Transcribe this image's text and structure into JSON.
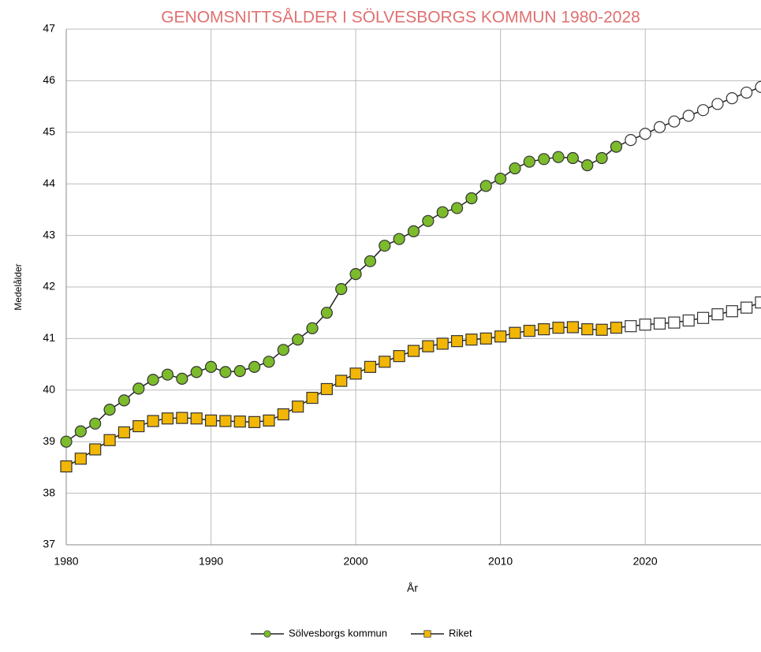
{
  "chart_data": {
    "type": "line",
    "title": "GENOMSNITTSÅLDER I SÖLVESBORGS KOMMUN 1980-2028",
    "x_label": "År",
    "y_label": "Medelålder",
    "x": [
      1980,
      1981,
      1982,
      1983,
      1984,
      1985,
      1986,
      1987,
      1988,
      1989,
      1990,
      1991,
      1992,
      1993,
      1994,
      1995,
      1996,
      1997,
      1998,
      1999,
      2000,
      2001,
      2002,
      2003,
      2004,
      2005,
      2006,
      2007,
      2008,
      2009,
      2010,
      2011,
      2012,
      2013,
      2014,
      2015,
      2016,
      2017,
      2018,
      2019,
      2020,
      2021,
      2022,
      2023,
      2024,
      2025,
      2026,
      2027,
      2028
    ],
    "series": [
      {
        "name": "Sölvesborgs kommun",
        "color": "#7cbb2c",
        "marker": "circle",
        "values": [
          39.0,
          39.2,
          39.35,
          39.62,
          39.8,
          40.03,
          40.2,
          40.3,
          40.22,
          40.35,
          40.45,
          40.35,
          40.37,
          40.45,
          40.55,
          40.78,
          40.98,
          41.2,
          41.5,
          41.96,
          42.25,
          42.5,
          42.8,
          42.93,
          43.08,
          43.28,
          43.45,
          43.53,
          43.72,
          43.96,
          44.1,
          44.3,
          44.43,
          44.48,
          44.52,
          44.5,
          44.36,
          44.5,
          44.72,
          44.85,
          44.97,
          45.1,
          45.21,
          45.32,
          45.43,
          45.55,
          45.66,
          45.77,
          45.88
        ]
      },
      {
        "name": "Riket",
        "color": "#f2b705",
        "marker": "square",
        "values": [
          38.52,
          38.67,
          38.85,
          39.03,
          39.18,
          39.3,
          39.4,
          39.45,
          39.46,
          39.45,
          39.41,
          39.4,
          39.39,
          39.38,
          39.41,
          39.53,
          39.68,
          39.85,
          40.02,
          40.18,
          40.32,
          40.45,
          40.55,
          40.66,
          40.76,
          40.85,
          40.9,
          40.95,
          40.98,
          41.0,
          41.04,
          41.11,
          41.15,
          41.18,
          41.21,
          41.22,
          41.18,
          41.17,
          41.21,
          41.24,
          41.27,
          41.29,
          41.31,
          41.35,
          41.4,
          41.47,
          41.53,
          41.6,
          41.7
        ]
      }
    ],
    "forecast_from": 2019,
    "xlim": [
      1980,
      2028
    ],
    "xticks": [
      1980,
      1990,
      2000,
      2010,
      2020
    ],
    "ylim": [
      37,
      47
    ],
    "yticks": [
      37,
      38,
      39,
      40,
      41,
      42,
      43,
      44,
      45,
      46,
      47
    ],
    "grid": true,
    "legend": "bottom",
    "title_color": "#e07070"
  }
}
